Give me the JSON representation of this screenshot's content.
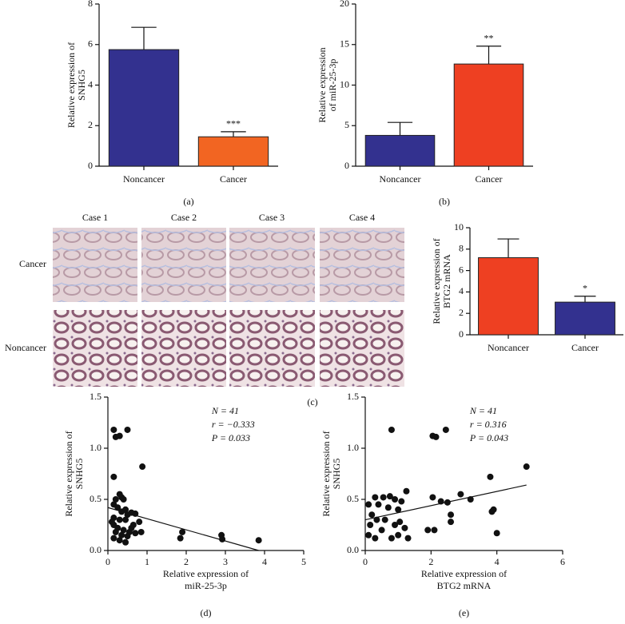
{
  "chart_data": [
    {
      "type": "bar",
      "panel_label": "(a)",
      "ylabel": [
        "Relative expression of",
        "SNHG5"
      ],
      "categories": [
        "Noncancer",
        "Cancer"
      ],
      "values": [
        5.75,
        1.45
      ],
      "errors": [
        1.1,
        0.25
      ],
      "colors": [
        "#33318f",
        "#f26522"
      ],
      "ylim": [
        0,
        8
      ],
      "yticks": [
        0,
        2,
        4,
        6,
        8
      ],
      "annotations": [
        {
          "category": "Cancer",
          "text": "***"
        }
      ]
    },
    {
      "type": "bar",
      "panel_label": "(b)",
      "ylabel": [
        "Relative expression",
        "of miR-25-3p"
      ],
      "categories": [
        "Noncancer",
        "Cancer"
      ],
      "values": [
        3.8,
        12.6
      ],
      "errors": [
        1.6,
        2.2
      ],
      "colors": [
        "#33318f",
        "#ee4022"
      ],
      "ylim": [
        0,
        20
      ],
      "yticks": [
        0,
        5,
        10,
        15,
        20
      ],
      "annotations": [
        {
          "category": "Cancer",
          "text": "**"
        }
      ]
    },
    {
      "type": "bar",
      "ylabel": [
        "Relative expression of",
        "BTG2 mRNA"
      ],
      "categories": [
        "Noncancer",
        "Cancer"
      ],
      "values": [
        7.2,
        3.05
      ],
      "errors": [
        1.75,
        0.55
      ],
      "colors": [
        "#ee4022",
        "#33318f"
      ],
      "ylim": [
        0,
        10
      ],
      "yticks": [
        0,
        2,
        4,
        6,
        8,
        10
      ],
      "annotations": [
        {
          "category": "Cancer",
          "text": "*"
        }
      ]
    },
    {
      "type": "scatter",
      "panel_label": "(d)",
      "xlabel": [
        "Relative expression of",
        "miR-25-3p"
      ],
      "ylabel": [
        "Relative expression of",
        "SNHG5"
      ],
      "stats": [
        "N = 41",
        "r = −0.333",
        "P = 0.033"
      ],
      "color": "#111111",
      "x": [
        0.15,
        0.3,
        0.5,
        0.2,
        0.88,
        0.15,
        0.2,
        0.3,
        0.35,
        0.4,
        0.15,
        0.25,
        0.35,
        0.45,
        0.5,
        0.6,
        0.7,
        0.15,
        0.3,
        0.45,
        0.8,
        0.15,
        0.25,
        0.4,
        0.55,
        0.7,
        0.85,
        0.2,
        0.35,
        0.5,
        0.15,
        0.3,
        0.45,
        0.6,
        0.1,
        1.85,
        1.9,
        2.9,
        2.92,
        3.85,
        0.65
      ],
      "values": [
        1.18,
        1.12,
        1.18,
        1.11,
        0.82,
        0.72,
        0.5,
        0.55,
        0.52,
        0.5,
        0.45,
        0.42,
        0.38,
        0.4,
        0.35,
        0.37,
        0.36,
        0.32,
        0.3,
        0.3,
        0.28,
        0.25,
        0.22,
        0.2,
        0.18,
        0.17,
        0.18,
        0.18,
        0.15,
        0.14,
        0.12,
        0.1,
        0.08,
        0.22,
        0.28,
        0.12,
        0.18,
        0.15,
        0.11,
        0.1,
        0.25
      ],
      "fit_line": {
        "x": [
          0,
          3.85
        ],
        "y": [
          0.42,
          0
        ]
      },
      "xlim": [
        0,
        5
      ],
      "xticks": [
        0,
        1,
        2,
        3,
        4,
        5
      ],
      "ylim": [
        0,
        1.5
      ],
      "yticks": [
        {
          "value": 0,
          "label": "0.0"
        },
        0.5,
        {
          "value": 1,
          "label": "1.0"
        },
        1.5
      ]
    },
    {
      "type": "scatter",
      "panel_label": "(e)",
      "xlabel": [
        "Relative expression of",
        "BTG2 mRNA"
      ],
      "ylabel": [
        "Relative expression of",
        "SNHG5"
      ],
      "stats": [
        "N = 41",
        "r = 0.316",
        "P = 0.043"
      ],
      "color": "#111111",
      "x": [
        0.8,
        2.05,
        2.15,
        2.45,
        4.9,
        3.8,
        1.25,
        0.3,
        0.55,
        0.75,
        0.9,
        1.1,
        2.05,
        2.5,
        2.9,
        0.1,
        0.4,
        0.7,
        1.0,
        2.3,
        3.2,
        3.85,
        3.9,
        0.2,
        0.35,
        0.6,
        1.05,
        2.6,
        0.15,
        0.5,
        0.9,
        1.2,
        1.9,
        2.1,
        2.6,
        0.1,
        0.3,
        0.8,
        1.0,
        1.3,
        4.0
      ],
      "values": [
        1.18,
        1.12,
        1.11,
        1.18,
        0.82,
        0.72,
        0.58,
        0.52,
        0.52,
        0.53,
        0.5,
        0.48,
        0.52,
        0.47,
        0.55,
        0.45,
        0.45,
        0.42,
        0.4,
        0.48,
        0.5,
        0.38,
        0.4,
        0.35,
        0.3,
        0.3,
        0.28,
        0.35,
        0.25,
        0.2,
        0.25,
        0.22,
        0.2,
        0.2,
        0.28,
        0.15,
        0.12,
        0.12,
        0.15,
        0.12,
        0.17
      ],
      "fit_line": {
        "x": [
          0,
          4.9
        ],
        "y": [
          0.3,
          0.64
        ]
      },
      "xlim": [
        0,
        6
      ],
      "xticks": [
        0,
        2,
        4,
        6
      ],
      "ylim": [
        0,
        1.5
      ],
      "yticks": [
        {
          "value": 0,
          "label": "0.0"
        },
        0.5,
        {
          "value": 1,
          "label": "1.0"
        },
        1.5
      ]
    }
  ],
  "image_panel": {
    "label": "(c)",
    "columns": [
      "Case 1",
      "Case 2",
      "Case 3",
      "Case 4"
    ],
    "rows": [
      "Cancer",
      "Noncancer"
    ]
  }
}
